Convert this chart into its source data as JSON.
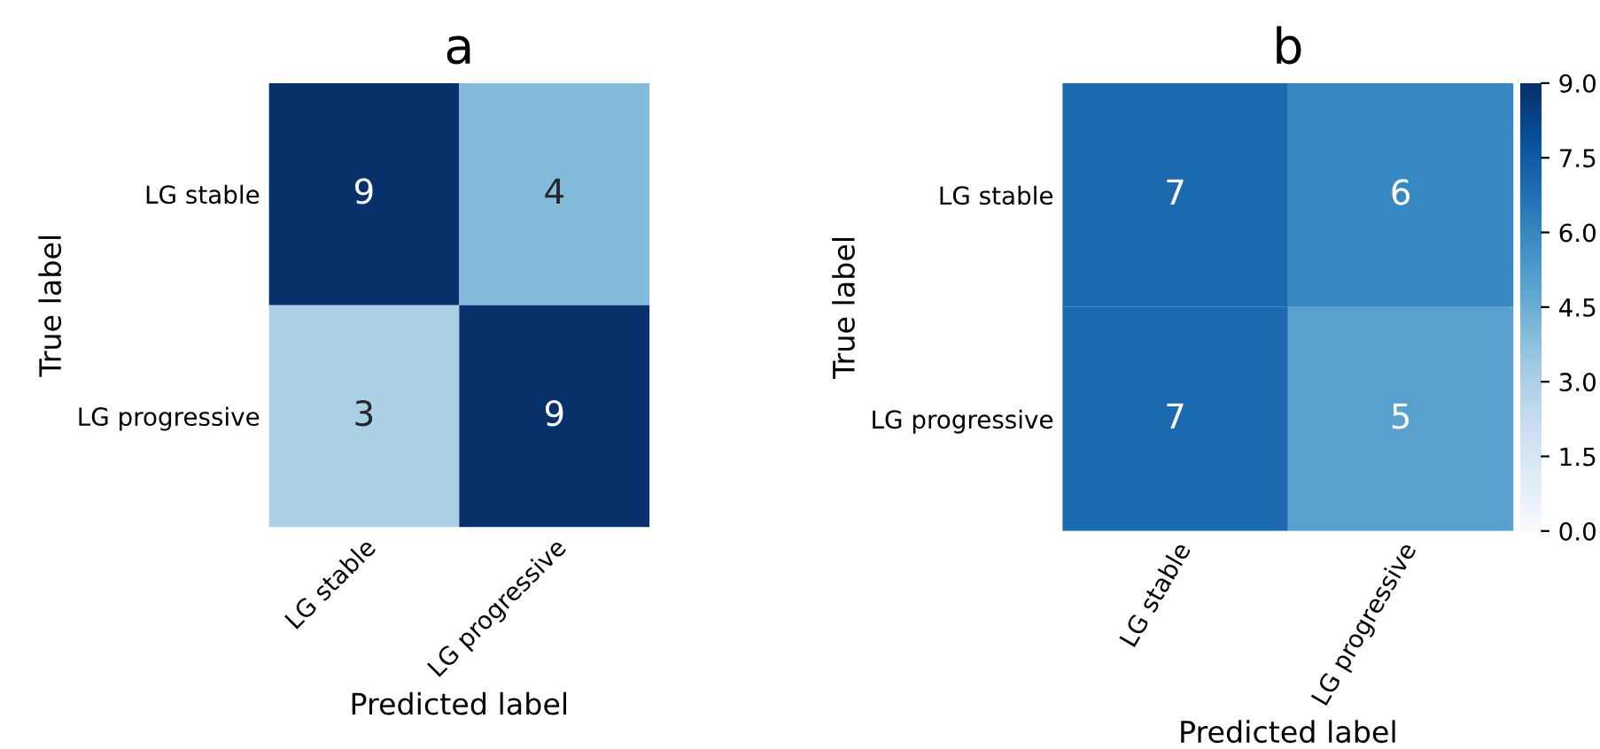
{
  "chart_data": [
    {
      "type": "heatmap",
      "title": "a",
      "xlabel": "Predicted label",
      "ylabel": "True label",
      "categories": [
        "LG stable",
        "LG progressive"
      ],
      "y_categories": [
        "LG stable",
        "LG progressive"
      ],
      "cells": [
        [
          9,
          4
        ],
        [
          3,
          9
        ]
      ],
      "data_labels": true
    },
    {
      "type": "heatmap",
      "title": "b",
      "xlabel": "Predicted label",
      "ylabel": "True label",
      "categories": [
        "LG stable",
        "LG progressive"
      ],
      "y_categories": [
        "LG stable",
        "LG progressive"
      ],
      "cells": [
        [
          7,
          6
        ],
        [
          7,
          5
        ]
      ],
      "data_labels": true,
      "clim": [
        0,
        9
      ],
      "cticks": [
        {
          "value": 0,
          "label": "0.0"
        },
        {
          "value": 1.5,
          "label": "1.5"
        },
        {
          "value": 3,
          "label": "3.0"
        },
        {
          "value": 4.5,
          "label": "4.5"
        },
        {
          "value": 6,
          "label": "6.0"
        },
        {
          "value": 7.5,
          "label": "7.5"
        },
        {
          "value": 9,
          "label": "9.0"
        }
      ]
    }
  ]
}
